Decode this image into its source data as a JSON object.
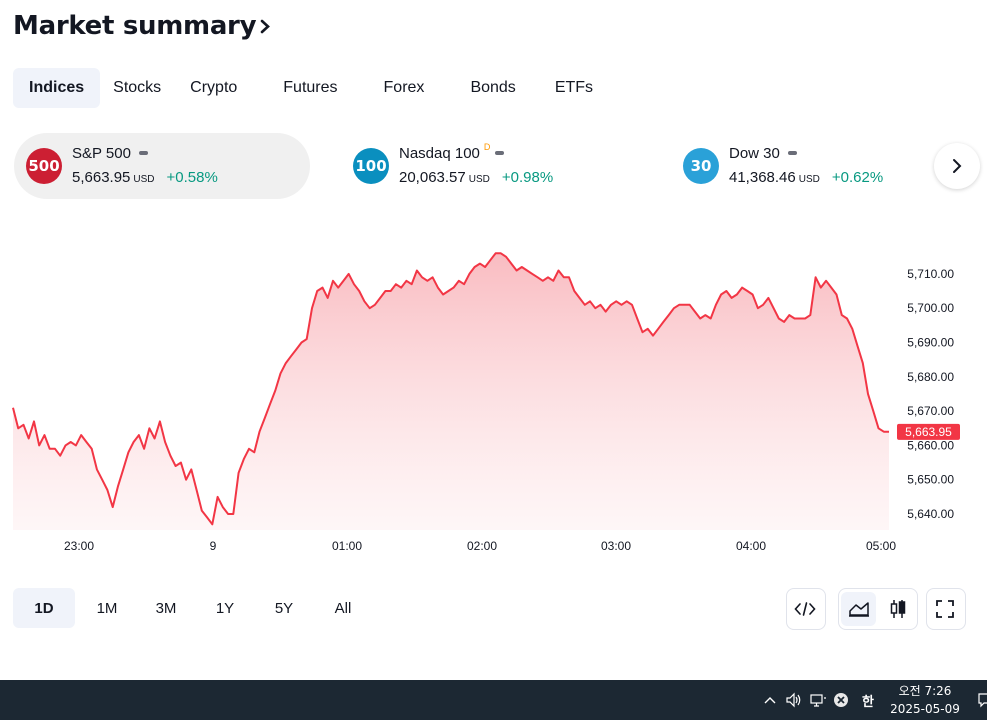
{
  "header": {
    "title": "Market summary"
  },
  "tabs": [
    {
      "label": "Indices",
      "active": true
    },
    {
      "label": "Stocks"
    },
    {
      "label": "Crypto"
    },
    {
      "label": "Futures"
    },
    {
      "label": "Forex"
    },
    {
      "label": "Bonds"
    },
    {
      "label": "ETFs"
    }
  ],
  "symbols": [
    {
      "badge": "500",
      "badge_color": "#cc1f33",
      "name": "S&P 500",
      "delayed": "",
      "value": "5,663.95",
      "currency": "USD",
      "change": "+0.58%"
    },
    {
      "badge": "100",
      "badge_color": "#0a8fbf",
      "name": "Nasdaq 100",
      "delayed": "D",
      "value": "20,063.57",
      "currency": "USD",
      "change": "+0.98%"
    },
    {
      "badge": "30",
      "badge_color": "#2aa1d8",
      "name": "Dow 30",
      "delayed": "",
      "value": "41,368.46",
      "currency": "USD",
      "change": "+0.62%"
    }
  ],
  "colors": {
    "line": "#f23645",
    "positive": "#089981",
    "delayed": "#ff9800"
  },
  "chart_data": {
    "type": "area",
    "x_ticks": [
      "23:00",
      "9",
      "01:00",
      "02:00",
      "03:00",
      "04:00",
      "05:00"
    ],
    "y_ticks": [
      "5,710.00",
      "5,700.00",
      "5,690.00",
      "5,680.00",
      "5,670.00",
      "5,660.00",
      "5,650.00",
      "5,640.00"
    ],
    "ylim": [
      5637,
      5721
    ],
    "current_label": "5,663.95",
    "current_value": 5663.95,
    "series": [
      {
        "values": [
          5671,
          5665,
          5666,
          5662,
          5667,
          5660,
          5663,
          5659,
          5659,
          5657,
          5660,
          5661,
          5660,
          5663,
          5661,
          5659,
          5653,
          5650,
          5647,
          5642,
          5648,
          5653,
          5658,
          5661,
          5663,
          5659,
          5665,
          5662,
          5667,
          5661,
          5657,
          5654,
          5655,
          5650,
          5653,
          5647,
          5641,
          5639,
          5637,
          5645,
          5642,
          5640,
          5640,
          5652,
          5656,
          5659,
          5658,
          5664,
          5668,
          5672,
          5676,
          5681,
          5684,
          5686,
          5688,
          5690,
          5691,
          5700,
          5705,
          5706,
          5703,
          5708,
          5706,
          5708,
          5710,
          5707,
          5705,
          5702,
          5700,
          5701,
          5703,
          5705,
          5705,
          5707,
          5706,
          5708,
          5707,
          5711,
          5709,
          5708,
          5709,
          5706,
          5704,
          5705,
          5706,
          5708,
          5707,
          5710,
          5712,
          5713,
          5712,
          5714,
          5716,
          5716,
          5715,
          5713,
          5711,
          5712,
          5711,
          5710,
          5709,
          5708,
          5709,
          5708,
          5711,
          5709,
          5709,
          5705,
          5703,
          5701,
          5702,
          5700,
          5701,
          5699,
          5701,
          5702,
          5701,
          5702,
          5701,
          5697,
          5693,
          5694,
          5692,
          5694,
          5696,
          5698,
          5700,
          5701,
          5701,
          5701,
          5699,
          5697,
          5698,
          5697,
          5701,
          5704,
          5705,
          5703,
          5704,
          5706,
          5705,
          5704,
          5700,
          5701,
          5703,
          5700,
          5697,
          5696,
          5698,
          5697,
          5697,
          5697,
          5698,
          5709,
          5706,
          5708,
          5706,
          5704,
          5698,
          5697,
          5694,
          5689,
          5684,
          5675,
          5670,
          5665,
          5664,
          5664
        ]
      }
    ]
  },
  "periods": [
    {
      "label": "1D",
      "active": true
    },
    {
      "label": "1M"
    },
    {
      "label": "3M"
    },
    {
      "label": "1Y"
    },
    {
      "label": "5Y"
    },
    {
      "label": "All"
    }
  ],
  "taskbar": {
    "time": "오전 7:26",
    "date": "2025-05-09",
    "ime": "한"
  }
}
